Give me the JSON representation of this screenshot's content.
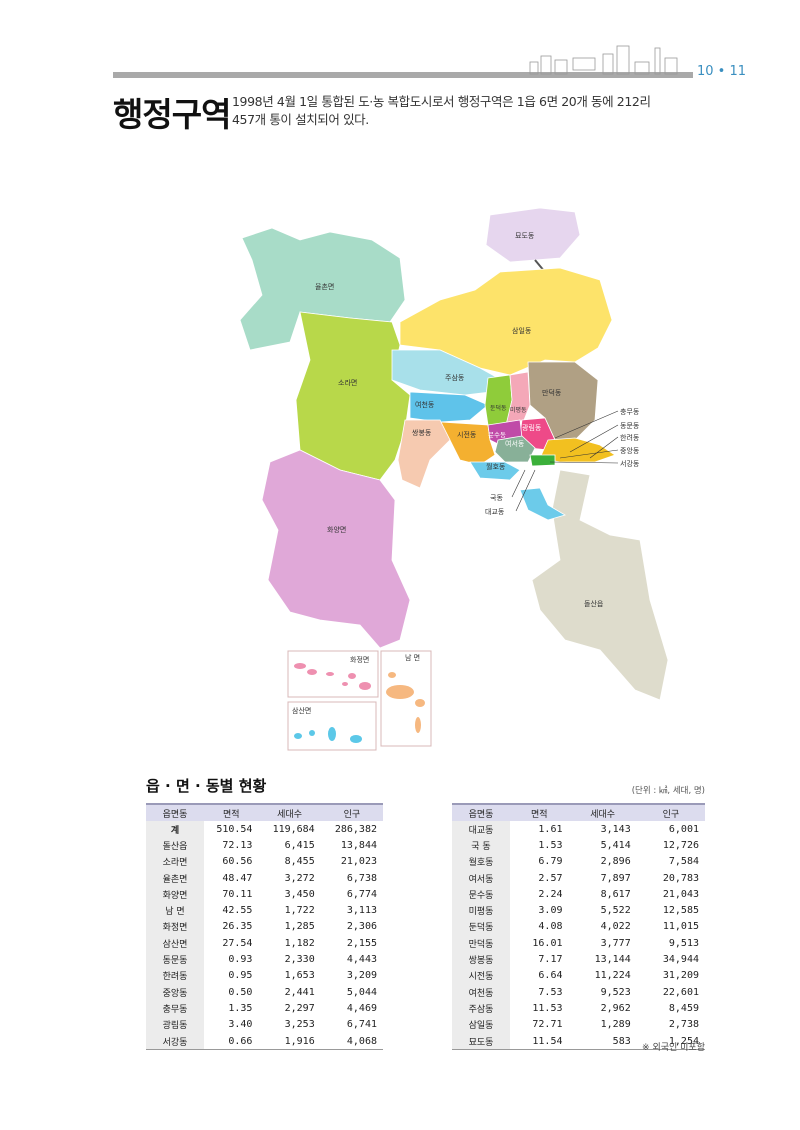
{
  "header": {
    "page_numbers": "10 • 11",
    "title": "행정구역",
    "description_line1": "1998년 4월 1일 통합된 도·농 복합도시로서 행정구역은 1읍 6면 20개 동에 212리",
    "description_line2": "457개 통이 설치되어 있다."
  },
  "map": {
    "regions": {
      "myodo": "묘도동",
      "yulchon": "율촌면",
      "samil": "삼일동",
      "sora": "소라면",
      "jusam": "주삼동",
      "yeocheon": "여천동",
      "dundeok": "둔덕동",
      "mipyeong": "미평동",
      "mandeok": "만덕동",
      "gwangrim": "광림동",
      "ssangbong": "쌍봉동",
      "sijeon": "시전동",
      "munsu": "문수동",
      "yeoseo": "여서동",
      "wolho": "월호동",
      "hwayang": "화양면",
      "dolsan": "돌산읍"
    },
    "callouts": {
      "chungmu": "충무동",
      "dongmun": "동문동",
      "hallyeo": "한려동",
      "jungang": "중앙동",
      "seogang": "서강동",
      "guk": "국동",
      "daegyo": "대교동"
    },
    "insets": {
      "hwajeong": "화정면",
      "nam": "남  면",
      "samsan": "삼산면"
    }
  },
  "stats": {
    "title": "읍 · 면 · 동별 현황",
    "unit": "(단위 : ㎢, 세대, 명)",
    "columns": [
      "읍면동",
      "면적",
      "세대수",
      "인구"
    ],
    "left_rows": [
      [
        "계",
        "510.54",
        "119,684",
        "286,382"
      ],
      [
        "돌산읍",
        "72.13",
        "6,415",
        "13,844"
      ],
      [
        "소라면",
        "60.56",
        "8,455",
        "21,023"
      ],
      [
        "율촌면",
        "48.47",
        "3,272",
        "6,738"
      ],
      [
        "화양면",
        "70.11",
        "3,450",
        "6,774"
      ],
      [
        "남  면",
        "42.55",
        "1,722",
        "3,113"
      ],
      [
        "화정면",
        "26.35",
        "1,285",
        "2,306"
      ],
      [
        "삼산면",
        "27.54",
        "1,182",
        "2,155"
      ],
      [
        "동문동",
        "0.93",
        "2,330",
        "4,443"
      ],
      [
        "한려동",
        "0.95",
        "1,653",
        "3,209"
      ],
      [
        "중앙동",
        "0.50",
        "2,441",
        "5,044"
      ],
      [
        "충무동",
        "1.35",
        "2,297",
        "4,469"
      ],
      [
        "광림동",
        "3.40",
        "3,253",
        "6,741"
      ],
      [
        "서강동",
        "0.66",
        "1,916",
        "4,068"
      ]
    ],
    "right_rows": [
      [
        "대교동",
        "1.61",
        "3,143",
        "6,001"
      ],
      [
        "국  동",
        "1.53",
        "5,414",
        "12,726"
      ],
      [
        "월호동",
        "6.79",
        "2,896",
        "7,584"
      ],
      [
        "여서동",
        "2.57",
        "7,897",
        "20,783"
      ],
      [
        "문수동",
        "2.24",
        "8,617",
        "21,043"
      ],
      [
        "미평동",
        "3.09",
        "5,522",
        "12,585"
      ],
      [
        "둔덕동",
        "4.08",
        "4,022",
        "11,015"
      ],
      [
        "만덕동",
        "16.01",
        "3,777",
        "9,513"
      ],
      [
        "쌍봉동",
        "7.17",
        "13,144",
        "34,944"
      ],
      [
        "시전동",
        "6.64",
        "11,224",
        "31,209"
      ],
      [
        "여천동",
        "7.53",
        "9,523",
        "22,601"
      ],
      [
        "주삼동",
        "11.53",
        "2,962",
        "8,459"
      ],
      [
        "삼일동",
        "72.71",
        "1,289",
        "2,738"
      ],
      [
        "묘도동",
        "11.54",
        "583",
        "1,254"
      ]
    ],
    "footnote": "※ 외국인 미포함"
  }
}
